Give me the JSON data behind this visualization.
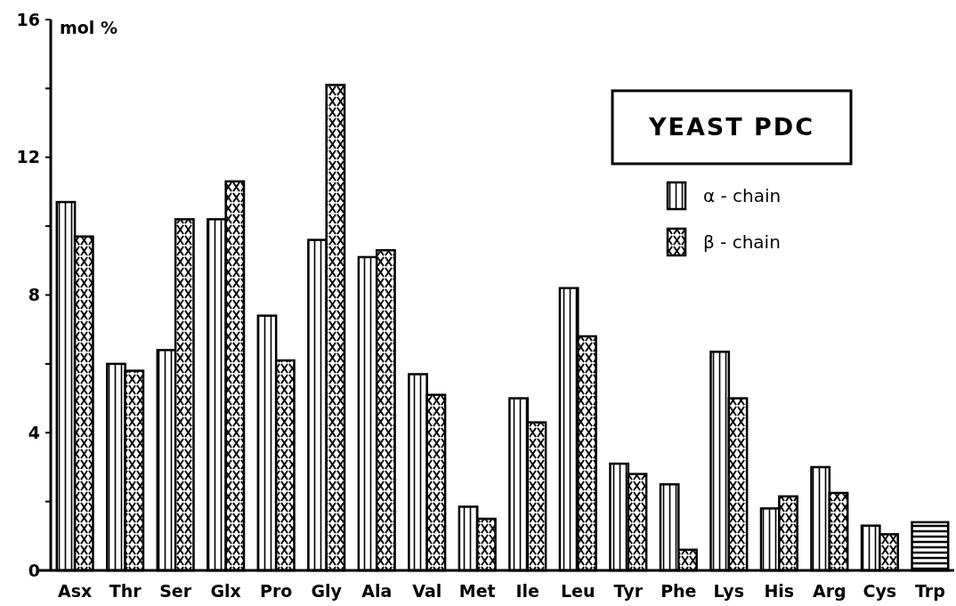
{
  "chart_data": {
    "type": "bar",
    "title": "YEAST PDC",
    "ylabel": "mol %",
    "categories": [
      "Asx",
      "Thr",
      "Ser",
      "Glx",
      "Pro",
      "Gly",
      "Ala",
      "Val",
      "Met",
      "Ile",
      "Leu",
      "Tyr",
      "Phe",
      "Lys",
      "His",
      "Arg",
      "Cys",
      "Trp"
    ],
    "series": [
      {
        "name": "α - chain",
        "color": "#000000",
        "values": [
          10.7,
          6.0,
          6.4,
          10.2,
          7.4,
          9.6,
          9.1,
          5.7,
          1.85,
          5.0,
          8.2,
          3.1,
          2.5,
          6.35,
          1.8,
          3.0,
          1.3,
          null
        ]
      },
      {
        "name": "β - chain",
        "color": "#000000",
        "values": [
          9.7,
          5.8,
          10.2,
          11.3,
          6.1,
          14.1,
          9.3,
          5.1,
          1.5,
          4.3,
          6.8,
          2.8,
          0.6,
          5.0,
          2.15,
          2.25,
          1.05,
          null
        ]
      },
      {
        "color": "#000000",
        "values": [
          null,
          null,
          null,
          null,
          null,
          null,
          null,
          null,
          null,
          null,
          null,
          null,
          null,
          null,
          null,
          null,
          null,
          1.4
        ]
      }
    ],
    "ylim": [
      0,
      16
    ],
    "yticks": [
      0,
      {
        "value": 2,
        "label": null
      },
      4,
      {
        "value": 6,
        "label": null
      },
      8,
      {
        "value": 10,
        "label": null
      },
      12,
      {
        "value": 14,
        "label": null
      },
      16
    ],
    "grid": false,
    "legend": "top right"
  }
}
